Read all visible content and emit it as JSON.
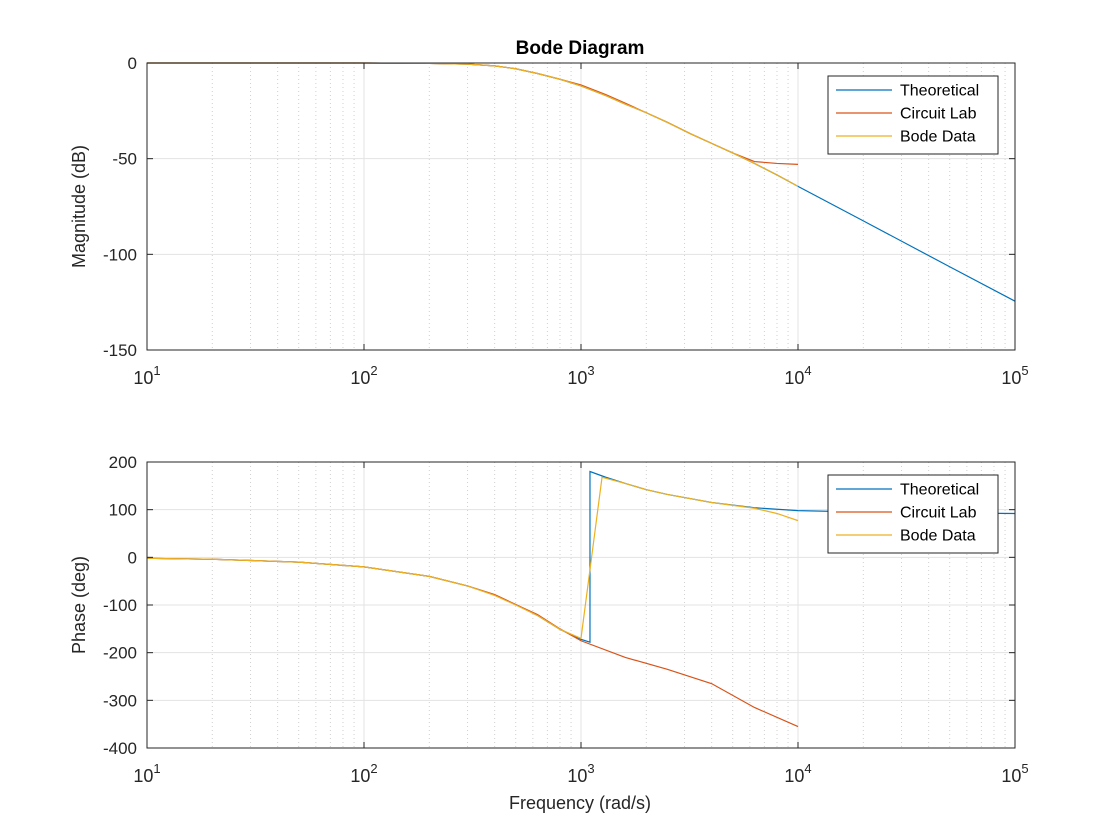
{
  "figure": {
    "title": "Bode Diagram",
    "xlabel": "Frequency (rad/s)"
  },
  "legend_entries": [
    "Theoretical",
    "Circuit Lab",
    "Bode Data"
  ],
  "series_colors": [
    "#0072BD",
    "#D95319",
    "#EDB120"
  ],
  "chart_data": [
    {
      "type": "line",
      "panel": "magnitude",
      "title": "Bode Diagram",
      "xlabel": "",
      "ylabel": "Magnitude (dB)",
      "xscale": "log",
      "xlim": [
        10,
        100000
      ],
      "ylim": [
        -150,
        0
      ],
      "yticks": [
        0,
        -50,
        -100,
        -150
      ],
      "ytick_labels": [
        "0",
        "-50",
        "-100",
        "-150"
      ],
      "xticks": [
        10,
        100,
        1000,
        10000,
        100000
      ],
      "xtick_labels": [
        {
          "base": "10",
          "exp": "1"
        },
        {
          "base": "10",
          "exp": "2"
        },
        {
          "base": "10",
          "exp": "3"
        },
        {
          "base": "10",
          "exp": "4"
        },
        {
          "base": "10",
          "exp": "5"
        }
      ],
      "grid": true,
      "legend_position": "top-right",
      "series": [
        {
          "name": "Theoretical",
          "color": "#0072BD",
          "x": [
            10,
            100,
            200,
            300,
            400,
            500,
            630,
            800,
            1000,
            1300,
            1600,
            2000,
            2500,
            3200,
            4000,
            5000,
            6300,
            8000,
            10000,
            20000,
            50000,
            100000
          ],
          "y": [
            0,
            0,
            -0.2,
            -0.6,
            -1.5,
            -3,
            -5.5,
            -8.5,
            -12,
            -17,
            -21.5,
            -26,
            -31,
            -37,
            -42,
            -47,
            -52.5,
            -58.5,
            -64.5,
            -82.5,
            -106.5,
            -124.5
          ]
        },
        {
          "name": "Circuit Lab",
          "color": "#D95319",
          "x": [
            10,
            100,
            200,
            300,
            400,
            500,
            630,
            800,
            1000,
            1300,
            1600,
            2000,
            2500,
            3200,
            4000,
            5000,
            6300,
            8000,
            10000
          ],
          "y": [
            0,
            0,
            -0.2,
            -0.6,
            -1.5,
            -3,
            -5.5,
            -8.5,
            -11.5,
            -16.5,
            -21,
            -26,
            -31,
            -37,
            -42,
            -47,
            -51.5,
            -52.5,
            -53
          ]
        },
        {
          "name": "Bode Data",
          "color": "#EDB120",
          "x": [
            10,
            100,
            200,
            300,
            400,
            500,
            630,
            800,
            1000,
            1300,
            1600,
            2000,
            2500,
            3200,
            4000,
            5000,
            6300,
            8000,
            10000
          ],
          "y": [
            0,
            0,
            -0.2,
            -0.6,
            -1.5,
            -3,
            -5.5,
            -8.5,
            -12,
            -17,
            -21.5,
            -26,
            -31,
            -37,
            -42,
            -47,
            -52.5,
            -58.5,
            -64.5
          ]
        }
      ]
    },
    {
      "type": "line",
      "panel": "phase",
      "title": "",
      "xlabel": "Frequency (rad/s)",
      "ylabel": "Phase (deg)",
      "xscale": "log",
      "xlim": [
        10,
        100000
      ],
      "ylim": [
        -400,
        200
      ],
      "yticks": [
        200,
        100,
        0,
        -100,
        -200,
        -300,
        -400
      ],
      "ytick_labels": [
        "200",
        "100",
        "0",
        "-100",
        "-200",
        "-300",
        "-400"
      ],
      "xticks": [
        10,
        100,
        1000,
        10000,
        100000
      ],
      "xtick_labels": [
        {
          "base": "10",
          "exp": "1"
        },
        {
          "base": "10",
          "exp": "2"
        },
        {
          "base": "10",
          "exp": "3"
        },
        {
          "base": "10",
          "exp": "4"
        },
        {
          "base": "10",
          "exp": "5"
        }
      ],
      "grid": true,
      "legend_position": "top-right",
      "series": [
        {
          "name": "Theoretical",
          "color": "#0072BD",
          "x": [
            10,
            20,
            50,
            100,
            200,
            300,
            400,
            500,
            630,
            800,
            1000,
            1100,
            1100,
            1300,
            1600,
            2000,
            2500,
            4000,
            6300,
            10000,
            20000,
            50000,
            100000
          ],
          "y": [
            -2,
            -4,
            -10,
            -20,
            -40,
            -60,
            -79,
            -99,
            -122,
            -151,
            -172,
            -178,
            180,
            168,
            155,
            142,
            132,
            115,
            104,
            98,
            95,
            93,
            92
          ]
        },
        {
          "name": "Circuit Lab",
          "color": "#D95319",
          "x": [
            10,
            20,
            50,
            100,
            200,
            300,
            400,
            500,
            630,
            800,
            1000,
            1600,
            2500,
            4000,
            6300,
            10000
          ],
          "y": [
            -2,
            -4,
            -10,
            -20,
            -40,
            -60,
            -78,
            -99,
            -120,
            -150,
            -175,
            -210,
            -235,
            -265,
            -315,
            -355
          ]
        },
        {
          "name": "Bode Data",
          "color": "#EDB120",
          "x": [
            10,
            20,
            50,
            100,
            200,
            300,
            400,
            500,
            630,
            800,
            1000,
            1250,
            1600,
            2000,
            2500,
            4000,
            6300,
            8000,
            10000
          ],
          "y": [
            -2,
            -4,
            -10,
            -20,
            -40,
            -60,
            -80,
            -100,
            -122,
            -151,
            -170,
            168,
            155,
            142,
            132,
            115,
            103,
            92,
            77
          ]
        }
      ]
    }
  ]
}
